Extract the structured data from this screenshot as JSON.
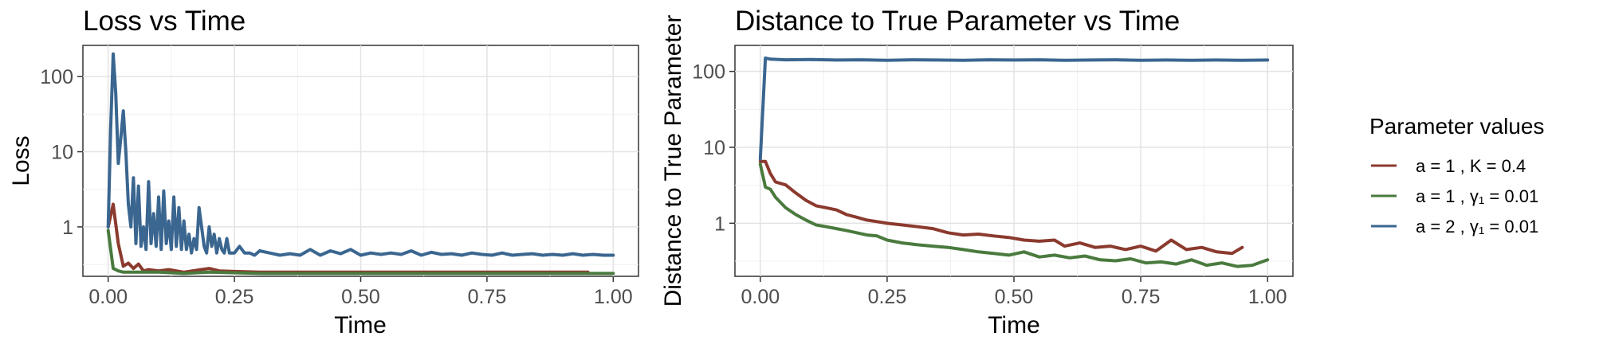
{
  "legend": {
    "title": "Parameter values",
    "items": [
      {
        "label": "a = 1 ,  K = 0.4",
        "color": "#8b3a2e"
      },
      {
        "label": "a = 1 ,  γ₁ = 0.01",
        "color": "#4a7a3e"
      },
      {
        "label": "a = 2 ,  γ₁ = 0.01",
        "color": "#3a6690"
      }
    ]
  },
  "chart_data": [
    {
      "type": "line",
      "title": "Loss vs Time",
      "xlabel": "Time",
      "ylabel": "Loss",
      "xlim": [
        -0.05,
        1.05
      ],
      "ylim": [
        0.22,
        260
      ],
      "yscale": "log",
      "xticks": [
        0,
        0.25,
        0.5,
        0.75,
        1
      ],
      "xtick_labels": [
        "0.00",
        "0.25",
        "0.50",
        "0.75",
        "1.00"
      ],
      "yticks": [
        1,
        10,
        100
      ],
      "ytick_labels": [
        "1",
        "10",
        "100"
      ],
      "grid": true,
      "series": [
        {
          "name": "a = 1 ,  K = 0.4",
          "color": "#8b3a2e",
          "x": [
            0,
            0.01,
            0.02,
            0.03,
            0.04,
            0.05,
            0.06,
            0.07,
            0.08,
            0.1,
            0.12,
            0.15,
            0.2,
            0.22,
            0.25,
            0.3,
            0.4,
            0.5,
            0.6,
            0.7,
            0.8,
            0.9,
            0.95
          ],
          "y": [
            1.0,
            2.0,
            0.6,
            0.3,
            0.33,
            0.28,
            0.32,
            0.26,
            0.27,
            0.26,
            0.27,
            0.25,
            0.28,
            0.26,
            0.255,
            0.25,
            0.25,
            0.25,
            0.25,
            0.25,
            0.25,
            0.25,
            0.25
          ]
        },
        {
          "name": "a = 1 ,  γ₁ = 0.01",
          "color": "#4a7a3e",
          "x": [
            0,
            0.01,
            0.02,
            0.03,
            0.05,
            0.08,
            0.1,
            0.15,
            0.2,
            0.3,
            0.4,
            0.5,
            0.6,
            0.7,
            0.8,
            0.9,
            1.0
          ],
          "y": [
            0.9,
            0.28,
            0.26,
            0.25,
            0.25,
            0.25,
            0.25,
            0.24,
            0.25,
            0.24,
            0.24,
            0.24,
            0.24,
            0.24,
            0.24,
            0.24,
            0.24
          ]
        },
        {
          "name": "a = 2 ,  γ₁ = 0.01",
          "color": "#3a6690",
          "x": [
            0,
            0.005,
            0.01,
            0.015,
            0.02,
            0.025,
            0.03,
            0.035,
            0.04,
            0.045,
            0.05,
            0.055,
            0.06,
            0.065,
            0.07,
            0.075,
            0.08,
            0.085,
            0.09,
            0.095,
            0.1,
            0.105,
            0.11,
            0.115,
            0.12,
            0.125,
            0.13,
            0.135,
            0.14,
            0.145,
            0.15,
            0.155,
            0.16,
            0.165,
            0.17,
            0.175,
            0.18,
            0.185,
            0.19,
            0.195,
            0.2,
            0.205,
            0.21,
            0.215,
            0.22,
            0.225,
            0.23,
            0.235,
            0.24,
            0.25,
            0.26,
            0.27,
            0.28,
            0.29,
            0.3,
            0.32,
            0.34,
            0.36,
            0.38,
            0.4,
            0.42,
            0.44,
            0.46,
            0.48,
            0.5,
            0.52,
            0.54,
            0.56,
            0.58,
            0.6,
            0.62,
            0.64,
            0.66,
            0.68,
            0.7,
            0.72,
            0.74,
            0.76,
            0.78,
            0.8,
            0.82,
            0.84,
            0.86,
            0.88,
            0.9,
            0.92,
            0.94,
            0.96,
            0.98,
            1.0
          ],
          "y": [
            1.0,
            20,
            200,
            60,
            7,
            15,
            35,
            10,
            2,
            1.0,
            4.5,
            0.6,
            3.5,
            0.55,
            1.0,
            0.5,
            4.0,
            0.6,
            1.5,
            0.55,
            2.5,
            0.5,
            3.0,
            0.6,
            1.2,
            0.5,
            2.5,
            0.55,
            1.8,
            0.5,
            1.2,
            0.5,
            0.8,
            0.45,
            0.7,
            0.5,
            1.8,
            1.0,
            0.55,
            0.45,
            1.0,
            0.55,
            0.8,
            0.45,
            0.7,
            0.5,
            0.45,
            0.7,
            0.45,
            0.45,
            0.55,
            0.45,
            0.45,
            0.42,
            0.48,
            0.45,
            0.42,
            0.44,
            0.42,
            0.5,
            0.42,
            0.48,
            0.44,
            0.5,
            0.42,
            0.45,
            0.43,
            0.45,
            0.43,
            0.48,
            0.42,
            0.46,
            0.43,
            0.44,
            0.42,
            0.45,
            0.43,
            0.42,
            0.45,
            0.42,
            0.43,
            0.44,
            0.42,
            0.43,
            0.42,
            0.44,
            0.42,
            0.43,
            0.42,
            0.42
          ]
        }
      ]
    },
    {
      "type": "line",
      "title": "Distance to True Parameter vs Time",
      "xlabel": "Time",
      "ylabel": "Distance to True Parameter",
      "xlim": [
        -0.05,
        1.05
      ],
      "ylim": [
        0.2,
        220
      ],
      "yscale": "log",
      "xticks": [
        0,
        0.25,
        0.5,
        0.75,
        1
      ],
      "xtick_labels": [
        "0.00",
        "0.25",
        "0.50",
        "0.75",
        "1.00"
      ],
      "yticks": [
        1,
        10,
        100
      ],
      "ytick_labels": [
        "1",
        "10",
        "100"
      ],
      "grid": true,
      "series": [
        {
          "name": "a = 1 ,  K = 0.4",
          "color": "#8b3a2e",
          "x": [
            0,
            0.01,
            0.02,
            0.03,
            0.05,
            0.07,
            0.09,
            0.11,
            0.13,
            0.15,
            0.17,
            0.19,
            0.21,
            0.23,
            0.25,
            0.28,
            0.31,
            0.34,
            0.37,
            0.4,
            0.43,
            0.46,
            0.49,
            0.52,
            0.55,
            0.58,
            0.6,
            0.63,
            0.66,
            0.69,
            0.72,
            0.75,
            0.78,
            0.81,
            0.84,
            0.87,
            0.9,
            0.93,
            0.95
          ],
          "y": [
            6.5,
            6.5,
            4.5,
            3.5,
            3.2,
            2.5,
            2.0,
            1.7,
            1.6,
            1.5,
            1.3,
            1.2,
            1.1,
            1.05,
            1.0,
            0.95,
            0.9,
            0.85,
            0.75,
            0.7,
            0.72,
            0.68,
            0.65,
            0.6,
            0.58,
            0.6,
            0.5,
            0.55,
            0.48,
            0.5,
            0.45,
            0.5,
            0.43,
            0.6,
            0.45,
            0.48,
            0.42,
            0.4,
            0.48
          ]
        },
        {
          "name": "a = 1 ,  γ₁ = 0.01",
          "color": "#4a7a3e",
          "x": [
            0,
            0.01,
            0.02,
            0.03,
            0.05,
            0.07,
            0.09,
            0.11,
            0.13,
            0.15,
            0.17,
            0.19,
            0.21,
            0.23,
            0.25,
            0.28,
            0.31,
            0.34,
            0.37,
            0.4,
            0.43,
            0.46,
            0.49,
            0.52,
            0.55,
            0.58,
            0.61,
            0.64,
            0.67,
            0.7,
            0.73,
            0.76,
            0.79,
            0.82,
            0.85,
            0.88,
            0.91,
            0.94,
            0.97,
            1.0
          ],
          "y": [
            6.0,
            3.0,
            2.8,
            2.2,
            1.6,
            1.3,
            1.1,
            0.95,
            0.9,
            0.85,
            0.8,
            0.75,
            0.7,
            0.68,
            0.6,
            0.55,
            0.52,
            0.5,
            0.48,
            0.45,
            0.42,
            0.4,
            0.38,
            0.42,
            0.36,
            0.38,
            0.35,
            0.37,
            0.33,
            0.32,
            0.34,
            0.3,
            0.31,
            0.29,
            0.33,
            0.28,
            0.3,
            0.27,
            0.28,
            0.33
          ]
        },
        {
          "name": "a = 2 ,  γ₁ = 0.01",
          "color": "#3a6690",
          "x": [
            0,
            0.01,
            0.02,
            0.05,
            0.1,
            0.15,
            0.2,
            0.25,
            0.3,
            0.35,
            0.4,
            0.45,
            0.5,
            0.55,
            0.6,
            0.65,
            0.7,
            0.75,
            0.8,
            0.85,
            0.9,
            0.95,
            1.0
          ],
          "y": [
            7,
            150,
            145,
            142,
            143,
            141,
            142,
            140,
            142,
            141,
            140,
            142,
            141,
            142,
            140,
            141,
            142,
            140,
            141,
            140,
            141,
            140,
            141
          ]
        }
      ]
    }
  ]
}
